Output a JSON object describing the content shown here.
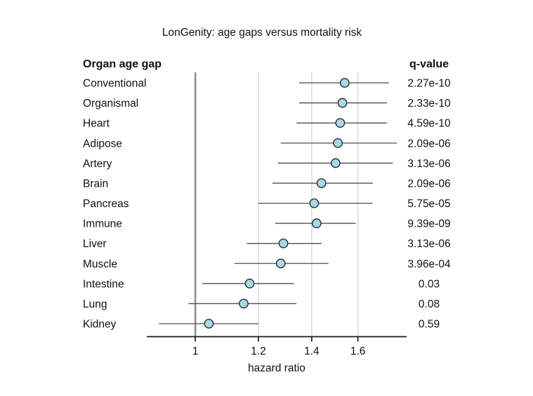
{
  "chart_data": {
    "type": "forest",
    "title": "LonGenity: age gaps versus mortality risk",
    "left_header": "Organ age gap",
    "right_header": "q-value",
    "xlabel": "hazard ratio",
    "x_scale": "log",
    "x_range": [
      0.869,
      1.842
    ],
    "x_ticks": [
      1,
      1.2,
      1.4,
      1.6
    ],
    "x_tick_labels": [
      "1",
      "1.2",
      "1.4",
      "1.6"
    ],
    "reference_line": 1,
    "grid": true,
    "rows": [
      {
        "label": "Conventional",
        "hr": 1.54,
        "ci_low": 1.35,
        "ci_high": 1.75,
        "q": "2.27e-10"
      },
      {
        "label": "Organismal",
        "hr": 1.53,
        "ci_low": 1.35,
        "ci_high": 1.74,
        "q": "2.33e-10"
      },
      {
        "label": "Heart",
        "hr": 1.52,
        "ci_low": 1.34,
        "ci_high": 1.74,
        "q": "4.59e-10"
      },
      {
        "label": "Adipose",
        "hr": 1.51,
        "ci_low": 1.28,
        "ci_high": 1.79,
        "q": "2.09e-06"
      },
      {
        "label": "Artery",
        "hr": 1.5,
        "ci_low": 1.27,
        "ci_high": 1.77,
        "q": "3.13e-06"
      },
      {
        "label": "Brain",
        "hr": 1.44,
        "ci_low": 1.25,
        "ci_high": 1.67,
        "q": "2.09e-06"
      },
      {
        "label": "Pancreas",
        "hr": 1.41,
        "ci_low": 1.2,
        "ci_high": 1.67,
        "q": "5.75e-05"
      },
      {
        "label": "Immune",
        "hr": 1.42,
        "ci_low": 1.26,
        "ci_high": 1.59,
        "q": "9.39e-09"
      },
      {
        "label": "Liver",
        "hr": 1.29,
        "ci_low": 1.16,
        "ci_high": 1.44,
        "q": "3.13e-06"
      },
      {
        "label": "Muscle",
        "hr": 1.28,
        "ci_low": 1.12,
        "ci_high": 1.47,
        "q": "3.96e-04"
      },
      {
        "label": "Intestine",
        "hr": 1.17,
        "ci_low": 1.02,
        "ci_high": 1.33,
        "q": "0.03"
      },
      {
        "label": "Lung",
        "hr": 1.15,
        "ci_low": 0.98,
        "ci_high": 1.34,
        "q": "0.08"
      },
      {
        "label": "Kidney",
        "hr": 1.04,
        "ci_low": 0.9,
        "ci_high": 1.2,
        "q": "0.59"
      }
    ],
    "colors": {
      "point_fill": "#a9d8e6",
      "point_stroke": "#2b2b2b",
      "ci_line": "#4d4d4d",
      "gridline": "#e2e2e2",
      "reference_line": "#8c8c8c",
      "axis": "#1a1a1a",
      "background": "#ffffff"
    }
  }
}
